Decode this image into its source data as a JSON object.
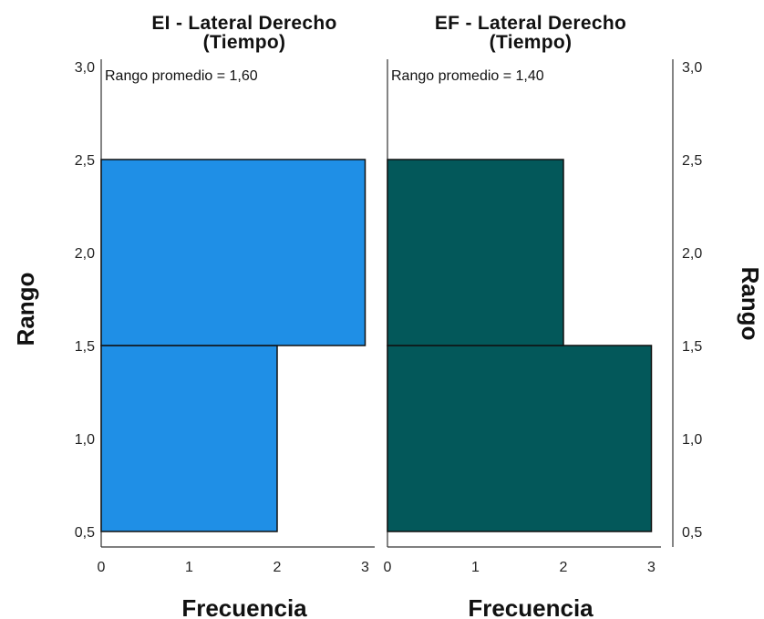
{
  "chart_data": {
    "type": "bar",
    "orientation": "horizontal",
    "panels": [
      {
        "title_line1": "EI - Lateral Derecho",
        "title_line2": "(Tiempo)",
        "annotation": "Rango promedio = 1,60",
        "color": "#1f8fe6",
        "bins": [
          {
            "range": [
              0.5,
              1.5
            ],
            "frequency": 2
          },
          {
            "range": [
              1.5,
              2.5
            ],
            "frequency": 3
          }
        ]
      },
      {
        "title_line1": "EF - Lateral Derecho",
        "title_line2": "(Tiempo)",
        "annotation": "Rango promedio = 1,40",
        "color": "#03585a",
        "bins": [
          {
            "range": [
              0.5,
              1.5
            ],
            "frequency": 3
          },
          {
            "range": [
              1.5,
              2.5
            ],
            "frequency": 2
          }
        ]
      }
    ],
    "ylabel": "Rango",
    "xlabel": "Frecuencia",
    "ylim": [
      0.5,
      3.0
    ],
    "yticks": [
      "0,5",
      "1,0",
      "1,5",
      "2,0",
      "2,5",
      "3,0"
    ],
    "xlim": [
      0,
      3
    ],
    "xticks": [
      "0",
      "1",
      "2",
      "3"
    ],
    "grid": false
  }
}
